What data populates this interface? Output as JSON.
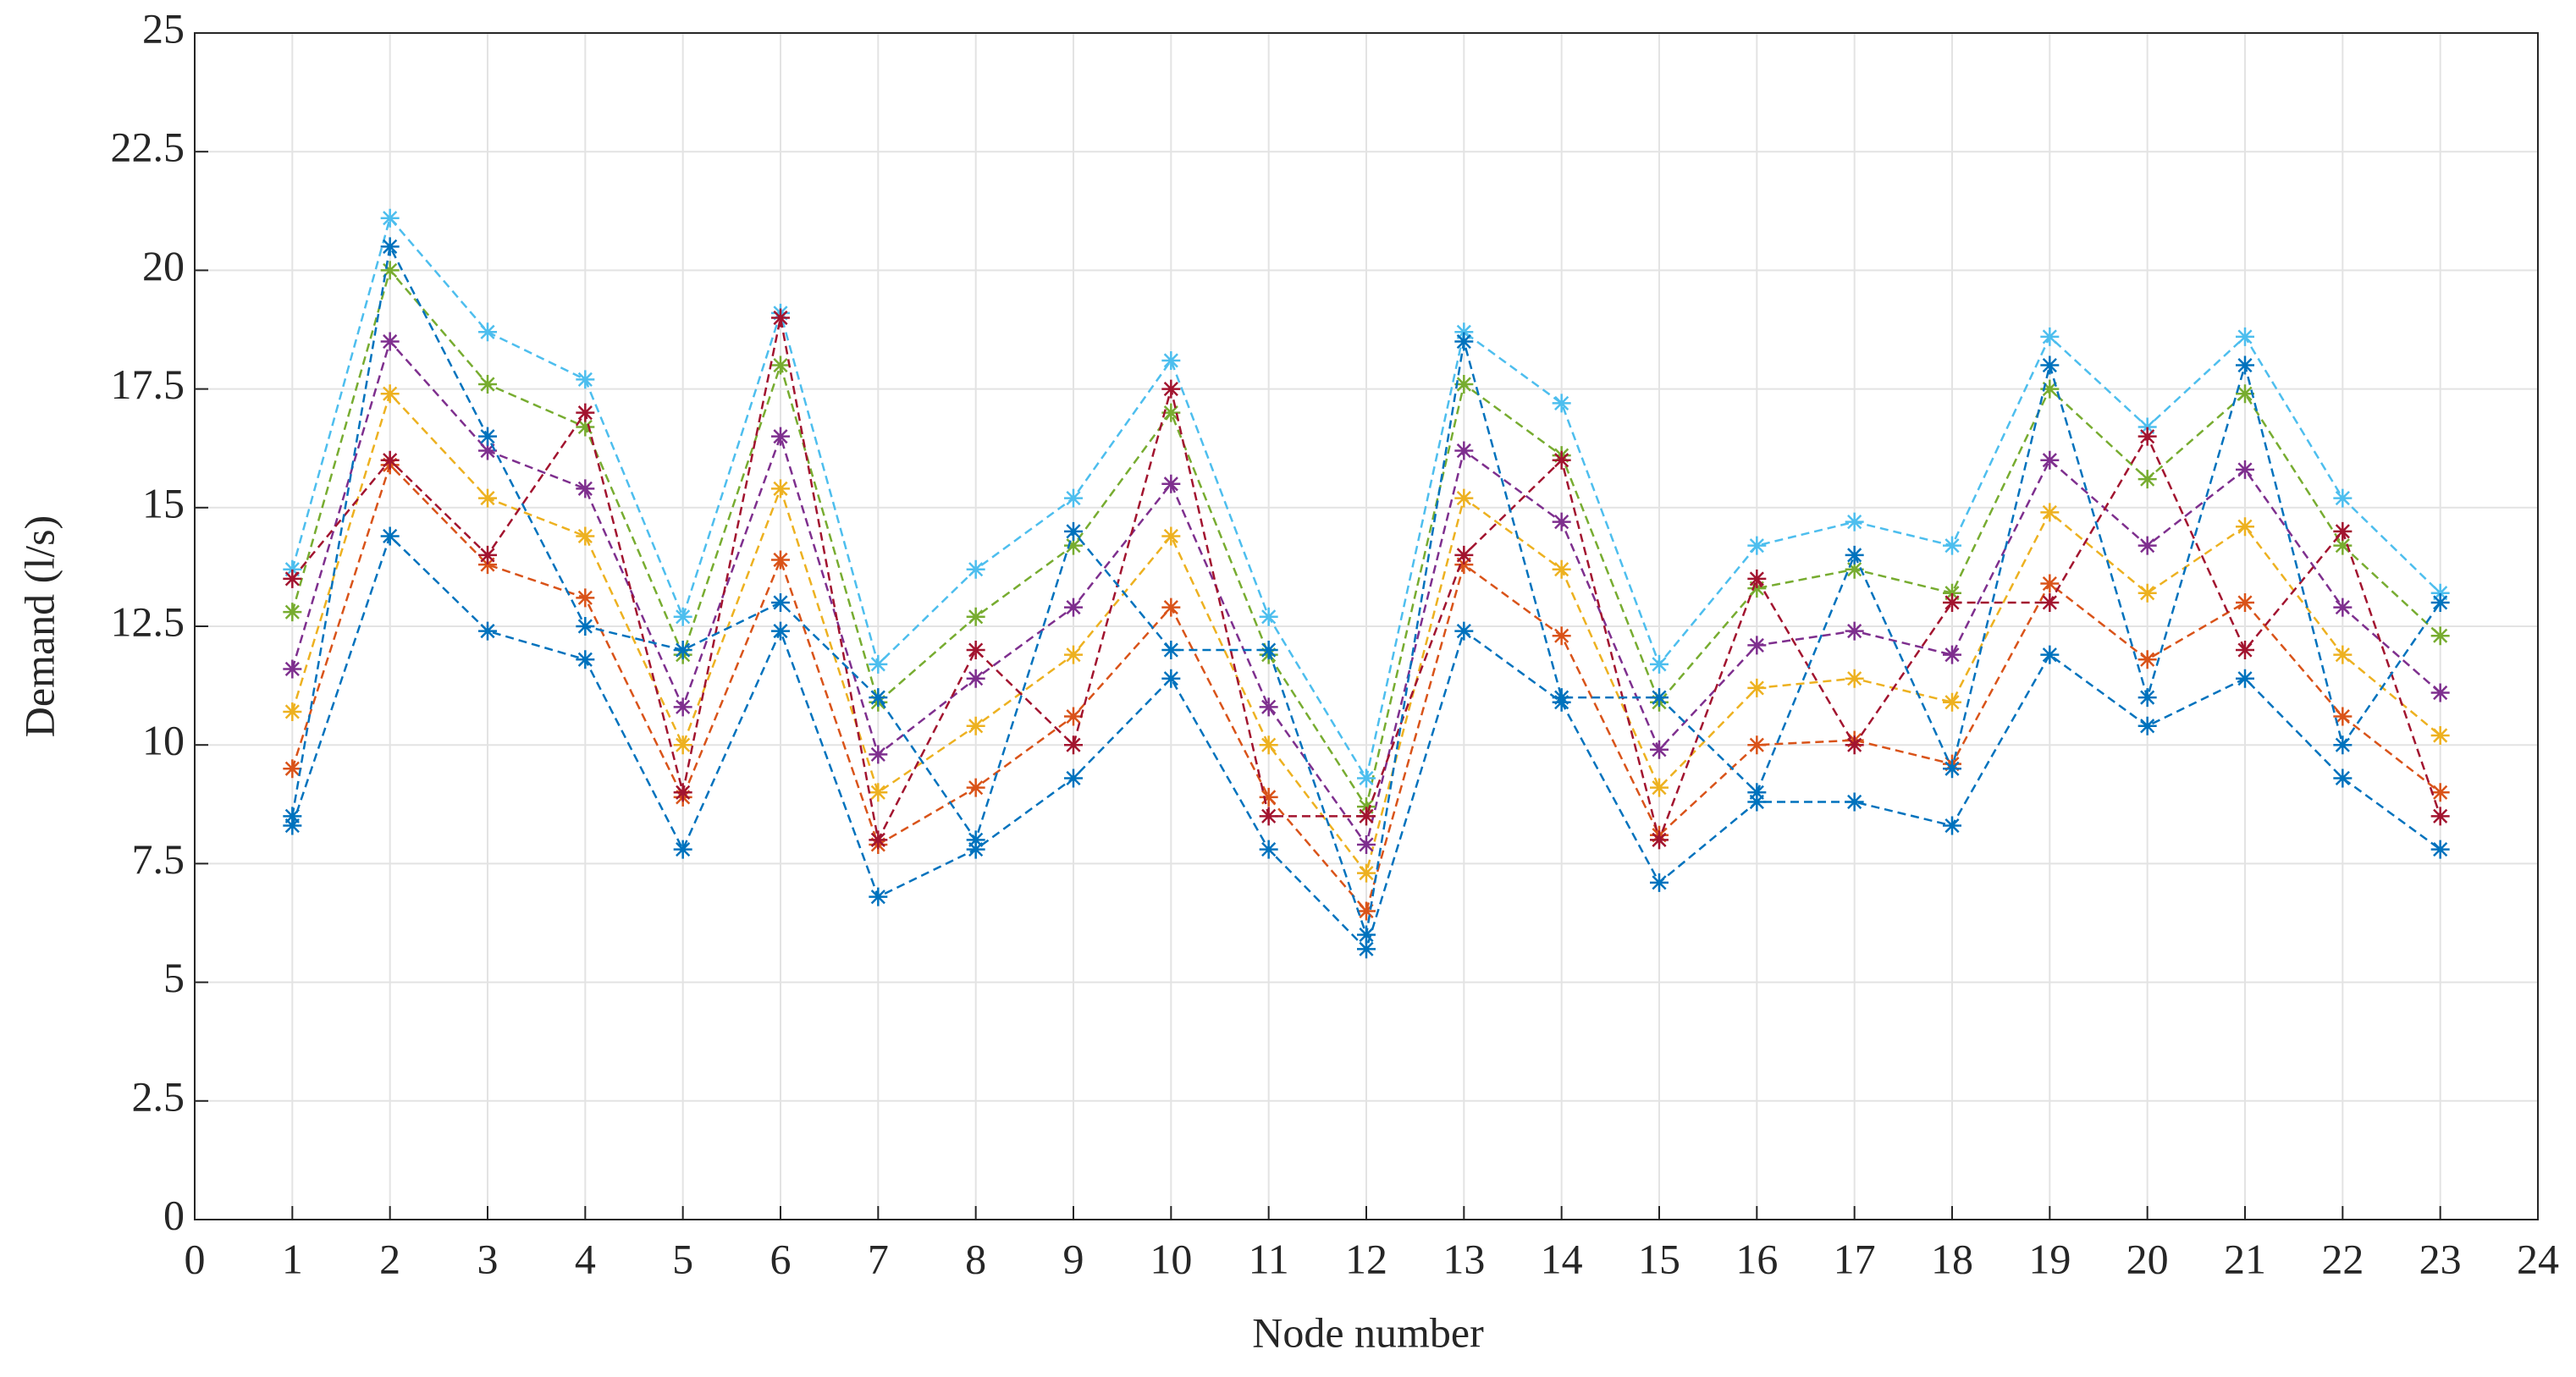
{
  "chart_data": {
    "type": "line",
    "xlabel": "Node number",
    "ylabel": "Demand (l/s)",
    "x": [
      1,
      2,
      3,
      4,
      5,
      6,
      7,
      8,
      9,
      10,
      11,
      12,
      13,
      14,
      15,
      16,
      17,
      18,
      19,
      20,
      21,
      22,
      23
    ],
    "xlim": [
      0,
      24
    ],
    "xticks": [
      0,
      1,
      2,
      3,
      4,
      5,
      6,
      7,
      8,
      9,
      10,
      11,
      12,
      13,
      14,
      15,
      16,
      17,
      18,
      19,
      20,
      21,
      22,
      23,
      24
    ],
    "ylim": [
      0,
      25
    ],
    "yticks": [
      0,
      2.5,
      5,
      7.5,
      10,
      12.5,
      15,
      17.5,
      20,
      22.5,
      25
    ],
    "grid": true,
    "line_style": "dashed",
    "marker": "asterisk",
    "series": [
      {
        "color": "#0072BD",
        "values": [
          8.3,
          14.4,
          12.4,
          11.8,
          7.8,
          12.4,
          6.8,
          7.8,
          9.3,
          11.4,
          7.8,
          5.7,
          12.4,
          10.9,
          7.1,
          8.8,
          8.8,
          8.3,
          11.9,
          10.4,
          11.4,
          9.3,
          7.8
        ]
      },
      {
        "color": "#D95319",
        "values": [
          9.5,
          15.9,
          13.8,
          13.1,
          8.9,
          13.9,
          7.9,
          9.1,
          10.6,
          12.9,
          8.9,
          6.5,
          13.8,
          12.3,
          8.1,
          10.0,
          10.1,
          9.6,
          13.4,
          11.8,
          13.0,
          10.6,
          9.0
        ]
      },
      {
        "color": "#EDB120",
        "values": [
          10.7,
          17.4,
          15.2,
          14.4,
          10.0,
          15.4,
          9.0,
          10.4,
          11.9,
          14.4,
          10.0,
          7.3,
          15.2,
          13.7,
          9.1,
          11.2,
          11.4,
          10.9,
          14.9,
          13.2,
          14.6,
          11.9,
          10.2
        ]
      },
      {
        "color": "#7E2F8E",
        "values": [
          11.6,
          18.5,
          16.2,
          15.4,
          10.8,
          16.5,
          9.8,
          11.4,
          12.9,
          15.5,
          10.8,
          7.9,
          16.2,
          14.7,
          9.9,
          12.1,
          12.4,
          11.9,
          16.0,
          14.2,
          15.8,
          12.9,
          11.1
        ]
      },
      {
        "color": "#77AC30",
        "values": [
          12.8,
          20.0,
          17.6,
          16.7,
          11.9,
          18.0,
          10.9,
          12.7,
          14.2,
          17.0,
          11.9,
          8.7,
          17.6,
          16.1,
          10.9,
          13.3,
          13.7,
          13.2,
          17.5,
          15.6,
          17.4,
          14.2,
          12.3
        ]
      },
      {
        "color": "#4DBEEE",
        "values": [
          13.7,
          21.1,
          18.7,
          17.7,
          12.7,
          19.1,
          11.7,
          13.7,
          15.2,
          18.1,
          12.7,
          9.3,
          18.7,
          17.2,
          11.7,
          14.2,
          14.7,
          14.2,
          18.6,
          16.7,
          18.6,
          15.2,
          13.2
        ]
      },
      {
        "color": "#A2142F",
        "values": [
          13.5,
          16,
          14,
          17,
          9,
          19,
          8,
          12,
          10,
          17.5,
          8.5,
          8.5,
          14,
          16,
          8,
          13.5,
          10,
          13,
          13,
          16.5,
          12,
          14.5,
          8.5
        ]
      },
      {
        "color": "#0072BD",
        "values": [
          8.5,
          20.5,
          16.5,
          12.5,
          12,
          13,
          11,
          8,
          14.5,
          12,
          12,
          6,
          18.5,
          11,
          11,
          9,
          14,
          9.5,
          18,
          11,
          18,
          10,
          13
        ]
      }
    ]
  }
}
